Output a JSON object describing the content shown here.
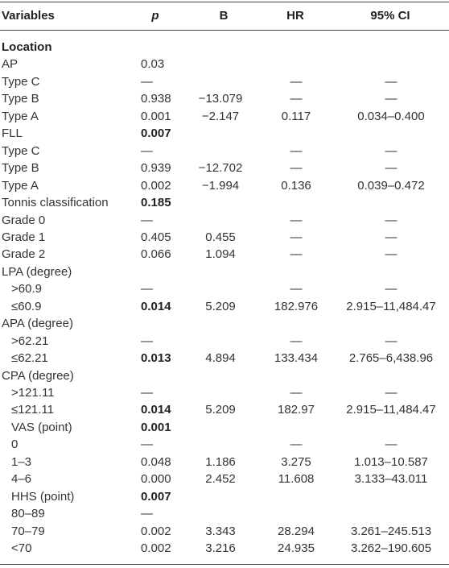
{
  "table": {
    "header": [
      "Variables",
      "p",
      "B",
      "HR",
      "95% CI"
    ],
    "rows": [
      {
        "cells": [
          "Location",
          null,
          null,
          null,
          null
        ],
        "bold": [
          0
        ],
        "indent": false
      },
      {
        "cells": [
          "AP",
          "0.03",
          null,
          null,
          null
        ],
        "bold": [],
        "indent": false
      },
      {
        "cells": [
          "Type C",
          "—",
          null,
          "—",
          "—"
        ],
        "bold": [],
        "indent": false
      },
      {
        "cells": [
          "Type B",
          "0.938",
          "−13.079",
          "—",
          "—"
        ],
        "bold": [],
        "indent": false
      },
      {
        "cells": [
          "Type A",
          "0.001",
          "−2.147",
          "0.117",
          "0.034–0.400"
        ],
        "bold": [],
        "indent": false
      },
      {
        "cells": [
          "FLL",
          "0.007",
          null,
          null,
          null
        ],
        "bold": [
          1
        ],
        "indent": false
      },
      {
        "cells": [
          "Type C",
          "—",
          null,
          "—",
          "—"
        ],
        "bold": [],
        "indent": false
      },
      {
        "cells": [
          "Type B",
          "0.939",
          "−12.702",
          "—",
          "—"
        ],
        "bold": [],
        "indent": false
      },
      {
        "cells": [
          "Type A",
          "0.002",
          "−1.994",
          "0.136",
          "0.039–0.472"
        ],
        "bold": [],
        "indent": false
      },
      {
        "cells": [
          "Tonnis classification",
          "0.185",
          null,
          null,
          null
        ],
        "bold": [
          1
        ],
        "indent": false
      },
      {
        "cells": [
          "Grade 0",
          "—",
          null,
          "—",
          "—"
        ],
        "bold": [],
        "indent": false
      },
      {
        "cells": [
          "Grade 1",
          "0.405",
          "0.455",
          "—",
          "—"
        ],
        "bold": [],
        "indent": false
      },
      {
        "cells": [
          "Grade 2",
          "0.066",
          "1.094",
          "—",
          "—"
        ],
        "bold": [],
        "indent": false
      },
      {
        "cells": [
          "LPA (degree)",
          null,
          null,
          null,
          null
        ],
        "bold": [],
        "indent": false
      },
      {
        "cells": [
          ">60.9",
          "—",
          null,
          "—",
          "—"
        ],
        "bold": [],
        "indent": true
      },
      {
        "cells": [
          "≤60.9",
          "0.014",
          "5.209",
          "182.976",
          "2.915–11,484.47"
        ],
        "bold": [
          1
        ],
        "indent": true
      },
      {
        "cells": [
          "APA (degree)",
          null,
          null,
          null,
          null
        ],
        "bold": [],
        "indent": false
      },
      {
        "cells": [
          ">62.21",
          "—",
          null,
          "—",
          "—"
        ],
        "bold": [],
        "indent": true
      },
      {
        "cells": [
          "≤62.21",
          "0.013",
          "4.894",
          "133.434",
          "2.765–6,438.96"
        ],
        "bold": [
          1
        ],
        "indent": true
      },
      {
        "cells": [
          "CPA (degree)",
          null,
          null,
          null,
          null
        ],
        "bold": [],
        "indent": false
      },
      {
        "cells": [
          ">121.11",
          "—",
          null,
          "—",
          "—"
        ],
        "bold": [],
        "indent": true
      },
      {
        "cells": [
          "≤121.11",
          "0.014",
          "5.209",
          "182.97",
          "2.915–11,484.47"
        ],
        "bold": [
          1
        ],
        "indent": true
      },
      {
        "cells": [
          "VAS (point)",
          "0.001",
          null,
          null,
          null
        ],
        "bold": [
          1
        ],
        "indent": true
      },
      {
        "cells": [
          "0",
          "—",
          null,
          "—",
          "—"
        ],
        "bold": [],
        "indent": true
      },
      {
        "cells": [
          "1–3",
          "0.048",
          "1.186",
          "3.275",
          "1.013–10.587"
        ],
        "bold": [],
        "indent": true
      },
      {
        "cells": [
          "4–6",
          "0.000",
          "2.452",
          "11.608",
          "3.133–43.011"
        ],
        "bold": [],
        "indent": true
      },
      {
        "cells": [
          "HHS (point)",
          "0.007",
          null,
          null,
          null
        ],
        "bold": [
          1
        ],
        "indent": true
      },
      {
        "cells": [
          "80–89",
          "—",
          null,
          null,
          null
        ],
        "bold": [],
        "indent": true
      },
      {
        "cells": [
          "70–79",
          "0.002",
          "3.343",
          "28.294",
          "3.261–245.513"
        ],
        "bold": [],
        "indent": true
      },
      {
        "cells": [
          "<70",
          "0.002",
          "3.216",
          "24.935",
          "3.262–190.605"
        ],
        "bold": [],
        "indent": true
      }
    ]
  }
}
